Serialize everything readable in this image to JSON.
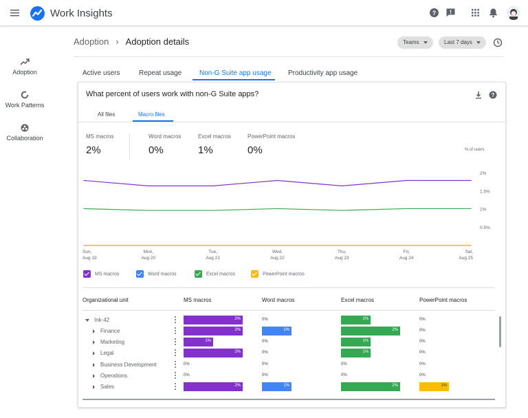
{
  "app": {
    "title": "Work Insights"
  },
  "sidenav": [
    {
      "label": "Adoption",
      "icon": "trending-up-icon"
    },
    {
      "label": "Work Patterns",
      "icon": "donut-icon"
    },
    {
      "label": "Collaboration",
      "icon": "group-icon"
    }
  ],
  "breadcrumb": {
    "parent": "Adoption",
    "current": "Adoption details"
  },
  "filters": {
    "group": "Teams",
    "range": "Last 7 days"
  },
  "tabs": [
    {
      "label": "Active users"
    },
    {
      "label": "Repeat usage"
    },
    {
      "label": "Non-G Suite app usage",
      "active": true
    },
    {
      "label": "Productivity app usage"
    }
  ],
  "card": {
    "title": "What percent of users work with non-G Suite apps?",
    "subtabs": [
      {
        "label": "All files"
      },
      {
        "label": "Macro files",
        "active": true
      }
    ],
    "metrics": [
      {
        "label": "MS macros",
        "value": "2%"
      },
      {
        "label": "Word macros",
        "value": "0%"
      },
      {
        "label": "Excel macros",
        "value": "1%"
      },
      {
        "label": "PowerPoint macros",
        "value": "0%"
      }
    ],
    "y_unit": "% of users"
  },
  "colors": {
    "ms": "#8430ce",
    "word": "#4285f4",
    "excel": "#34a853",
    "powerpoint": "#fbbc04",
    "accent": "#1a73e8"
  },
  "chart_data": {
    "type": "line",
    "x": [
      "Sun, Aug 19",
      "Mon, Aug 20",
      "Tue, Aug 21",
      "Wed, Aug 22",
      "Thu, Aug 23",
      "Fri, Aug 24",
      "Sat, Aug 25"
    ],
    "x_ticks": [
      [
        "Sun,",
        "Aug 19"
      ],
      [
        "Mon,",
        "Aug 20"
      ],
      [
        "Tue,",
        "Aug 21"
      ],
      [
        "Wed,",
        "Aug 22"
      ],
      [
        "Thu,",
        "Aug 23"
      ],
      [
        "Fri,",
        "Aug 24"
      ],
      [
        "Sat,",
        "Aug 25"
      ]
    ],
    "y_ticks": [
      0.5,
      1,
      1.5,
      2
    ],
    "y_tick_labels": [
      "0.5%",
      "1%",
      "1.5%",
      "2%"
    ],
    "ylim": [
      0,
      2
    ],
    "series": [
      {
        "name": "MS macros",
        "color": "#8430ce",
        "values": [
          1.8,
          1.65,
          1.65,
          1.8,
          1.65,
          1.8,
          1.8
        ]
      },
      {
        "name": "Word macros",
        "color": "#4285f4",
        "values": [
          0,
          0,
          0,
          0,
          0,
          0,
          0
        ]
      },
      {
        "name": "Excel macros",
        "color": "#34a853",
        "values": [
          1.02,
          0.97,
          0.97,
          1.02,
          0.97,
          1.02,
          1.02
        ]
      },
      {
        "name": "PowerPoint macros",
        "color": "#fbbc04",
        "values": [
          0,
          0,
          0,
          0,
          0,
          0,
          0
        ]
      }
    ],
    "legend_position": "bottom-left",
    "grid": false
  },
  "table": {
    "headers": [
      "Organizational unit",
      "MS macros",
      "Word macros",
      "Excel macros",
      "PowerPoint macros"
    ],
    "rows": [
      {
        "name": "Ink-42",
        "level": 0,
        "expanded": true,
        "values": [
          2,
          0,
          1,
          0
        ],
        "labels": [
          "2%",
          "0%",
          "1%",
          "0%"
        ]
      },
      {
        "name": "Finance",
        "level": 1,
        "values": [
          2,
          1,
          2,
          0
        ],
        "labels": [
          "2%",
          "1%",
          "2%",
          "0%"
        ]
      },
      {
        "name": "Marketing",
        "level": 1,
        "values": [
          1,
          0,
          1,
          0
        ],
        "labels": [
          "1%",
          "0%",
          "1%",
          "0%"
        ]
      },
      {
        "name": "Legal",
        "level": 1,
        "values": [
          2,
          0,
          1,
          0
        ],
        "labels": [
          "2%",
          "0%",
          "1%",
          "0%"
        ]
      },
      {
        "name": "Business Development",
        "level": 1,
        "values": [
          0,
          0,
          0,
          0
        ],
        "labels": [
          "0%",
          "0%",
          "0%",
          "0%"
        ]
      },
      {
        "name": "Operations",
        "level": 1,
        "values": [
          0,
          0,
          0,
          0
        ],
        "labels": [
          "0%",
          "0%",
          "0%",
          "0%"
        ]
      },
      {
        "name": "Sales",
        "level": 1,
        "values": [
          2,
          1,
          2,
          1
        ],
        "labels": [
          "2%",
          "1%",
          "2%",
          "1%"
        ]
      }
    ],
    "max_value": 2
  }
}
